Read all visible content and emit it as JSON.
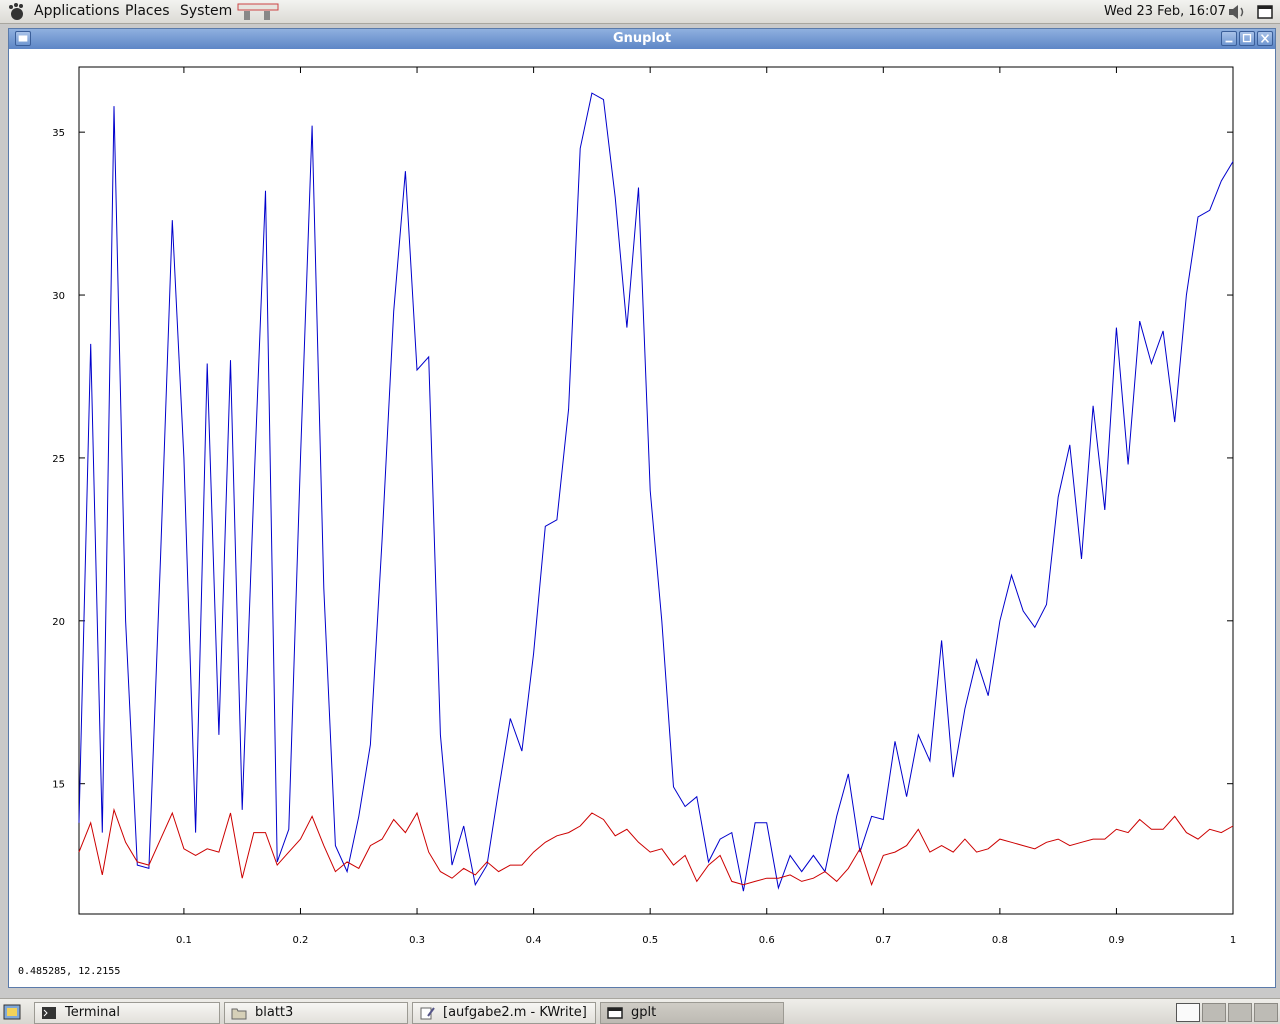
{
  "top_panel": {
    "menus": [
      "Applications",
      "Places",
      "System"
    ],
    "clock": "Wed 23 Feb, 16:07"
  },
  "window": {
    "title": "Gnuplot",
    "status_coordinates": "0.485285,  12.2155"
  },
  "taskbar": {
    "items": [
      {
        "label": "Terminal",
        "icon": "terminal-icon"
      },
      {
        "label": "blatt3",
        "icon": "folder-icon"
      },
      {
        "label": "[aufgabe2.m - KWrite]",
        "icon": "text-editor-icon"
      },
      {
        "label": "gplt",
        "icon": "window-icon"
      }
    ]
  },
  "chart_data": {
    "type": "line",
    "xlim": [
      0.01,
      1.0
    ],
    "ylim": [
      11.0,
      37.0
    ],
    "xticks": [
      0.1,
      0.2,
      0.3,
      0.4,
      0.5,
      0.6,
      0.7,
      0.8,
      0.9,
      1
    ],
    "xtick_labels": [
      "0.1",
      "0.2",
      "0.3",
      "0.4",
      "0.5",
      "0.6",
      "0.7",
      "0.8",
      "0.9",
      "1"
    ],
    "yticks": [
      15,
      20,
      25,
      30,
      35
    ],
    "ytick_labels": [
      "15",
      "20",
      "25",
      "30",
      "35"
    ],
    "grid": false,
    "colors": {
      "series1": "#0000cc",
      "series2": "#cc0000"
    },
    "series": [
      {
        "x": [
          0.01,
          0.02,
          0.03,
          0.04,
          0.05,
          0.06,
          0.07,
          0.08,
          0.09,
          0.1,
          0.11,
          0.12,
          0.13,
          0.14,
          0.15,
          0.16,
          0.17,
          0.18,
          0.19,
          0.2,
          0.21,
          0.22,
          0.23,
          0.24,
          0.25,
          0.26,
          0.27,
          0.28,
          0.29,
          0.3,
          0.31,
          0.32,
          0.33,
          0.34,
          0.35,
          0.36,
          0.37,
          0.38,
          0.39,
          0.4,
          0.41,
          0.42,
          0.43,
          0.44,
          0.45,
          0.46,
          0.47,
          0.48,
          0.49,
          0.5,
          0.51,
          0.52,
          0.53,
          0.54,
          0.55,
          0.56,
          0.57,
          0.58,
          0.59,
          0.6,
          0.61,
          0.62,
          0.63,
          0.64,
          0.65,
          0.66,
          0.67,
          0.68,
          0.69,
          0.7,
          0.71,
          0.72,
          0.73,
          0.74,
          0.75,
          0.76,
          0.77,
          0.78,
          0.79,
          0.8,
          0.81,
          0.82,
          0.83,
          0.84,
          0.85,
          0.86,
          0.87,
          0.88,
          0.89,
          0.9,
          0.91,
          0.92,
          0.93,
          0.94,
          0.95,
          0.96,
          0.97,
          0.98,
          0.99,
          1.0
        ],
        "values": [
          13.8,
          28.5,
          13.5,
          35.8,
          20.0,
          12.5,
          12.4,
          22.0,
          32.3,
          25.0,
          13.5,
          27.9,
          16.5,
          28.0,
          14.2,
          24.0,
          33.2,
          12.6,
          13.6,
          25.0,
          35.2,
          21.0,
          13.1,
          12.3,
          14.0,
          16.2,
          22.5,
          29.5,
          33.8,
          27.7,
          28.1,
          16.5,
          12.5,
          13.7,
          11.9,
          12.5,
          14.8,
          17.0,
          16.0,
          19.0,
          22.9,
          23.1,
          26.5,
          34.5,
          36.2,
          36.0,
          33.0,
          29.0,
          33.3,
          24.0,
          20.0,
          14.9,
          14.3,
          14.6,
          12.6,
          13.3,
          13.5,
          11.7,
          13.8,
          13.8,
          11.8,
          12.8,
          12.3,
          12.8,
          12.3,
          14.0,
          15.3,
          12.9,
          14.0,
          13.9,
          16.3,
          14.6,
          16.5,
          15.7,
          19.4,
          15.2,
          17.3,
          18.8,
          17.7,
          20.0,
          21.4,
          20.3,
          19.8,
          20.5,
          23.8,
          25.4,
          21.9,
          26.6,
          23.4,
          29.0,
          24.8,
          29.2,
          27.9,
          28.9,
          26.1,
          30.0,
          32.4,
          32.6,
          33.5,
          34.1
        ]
      },
      {
        "x": [
          0.01,
          0.02,
          0.03,
          0.04,
          0.05,
          0.06,
          0.07,
          0.08,
          0.09,
          0.1,
          0.11,
          0.12,
          0.13,
          0.14,
          0.15,
          0.16,
          0.17,
          0.18,
          0.19,
          0.2,
          0.21,
          0.22,
          0.23,
          0.24,
          0.25,
          0.26,
          0.27,
          0.28,
          0.29,
          0.3,
          0.31,
          0.32,
          0.33,
          0.34,
          0.35,
          0.36,
          0.37,
          0.38,
          0.39,
          0.4,
          0.41,
          0.42,
          0.43,
          0.44,
          0.45,
          0.46,
          0.47,
          0.48,
          0.49,
          0.5,
          0.51,
          0.52,
          0.53,
          0.54,
          0.55,
          0.56,
          0.57,
          0.58,
          0.59,
          0.6,
          0.61,
          0.62,
          0.63,
          0.64,
          0.65,
          0.66,
          0.67,
          0.68,
          0.69,
          0.7,
          0.71,
          0.72,
          0.73,
          0.74,
          0.75,
          0.76,
          0.77,
          0.78,
          0.79,
          0.8,
          0.81,
          0.82,
          0.83,
          0.84,
          0.85,
          0.86,
          0.87,
          0.88,
          0.89,
          0.9,
          0.91,
          0.92,
          0.93,
          0.94,
          0.95,
          0.96,
          0.97,
          0.98,
          0.99,
          1.0
        ],
        "values": [
          12.9,
          13.8,
          12.2,
          14.2,
          13.2,
          12.6,
          12.5,
          13.3,
          14.1,
          13.0,
          12.8,
          13.0,
          12.9,
          14.1,
          12.1,
          13.5,
          13.5,
          12.5,
          12.9,
          13.3,
          14.0,
          13.1,
          12.3,
          12.6,
          12.4,
          13.1,
          13.3,
          13.9,
          13.5,
          14.1,
          12.9,
          12.3,
          12.1,
          12.4,
          12.2,
          12.6,
          12.3,
          12.5,
          12.5,
          12.9,
          13.2,
          13.4,
          13.5,
          13.7,
          14.1,
          13.9,
          13.4,
          13.6,
          13.2,
          12.9,
          13.0,
          12.5,
          12.8,
          12.0,
          12.5,
          12.8,
          12.0,
          11.9,
          12.0,
          12.1,
          12.1,
          12.2,
          12.0,
          12.1,
          12.3,
          12.0,
          12.4,
          13.0,
          11.9,
          12.8,
          12.9,
          13.1,
          13.6,
          12.9,
          13.1,
          12.9,
          13.3,
          12.9,
          13.0,
          13.3,
          13.2,
          13.1,
          13.0,
          13.2,
          13.3,
          13.1,
          13.2,
          13.3,
          13.3,
          13.6,
          13.5,
          13.9,
          13.6,
          13.6,
          14.0,
          13.5,
          13.3,
          13.6,
          13.5,
          13.7
        ]
      }
    ]
  }
}
